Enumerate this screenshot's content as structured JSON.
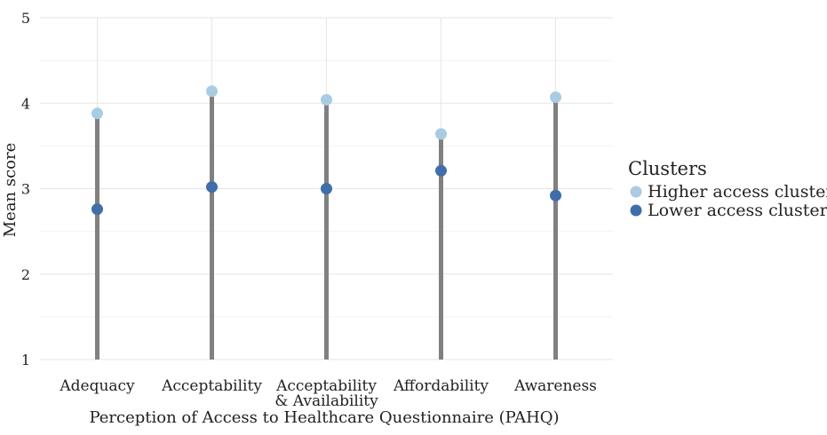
{
  "chart_data": {
    "type": "scatter",
    "title": "",
    "xlabel": "Perception of Access to Healthcare Questionnaire (PAHQ)",
    "ylabel": "Mean score",
    "categories": [
      [
        "Adequacy"
      ],
      [
        "Acceptability"
      ],
      [
        "Acceptability",
        "& Availability"
      ],
      [
        "Affordability"
      ],
      [
        "Awareness"
      ]
    ],
    "ylim": [
      1,
      5
    ],
    "yticks": [
      "1",
      "2",
      "3",
      "4",
      "5"
    ],
    "grid": true,
    "legend": {
      "title": "Clusters",
      "placement": "right"
    },
    "series": [
      {
        "name": "Higher access cluster",
        "color": "#a9cce3",
        "values": [
          3.88,
          4.14,
          4.04,
          3.64,
          4.07
        ]
      },
      {
        "name": "Lower access cluster",
        "color": "#3f6eaa",
        "values": [
          2.76,
          3.02,
          3.0,
          3.21,
          2.92
        ]
      }
    ],
    "stem_color": "#808080"
  }
}
